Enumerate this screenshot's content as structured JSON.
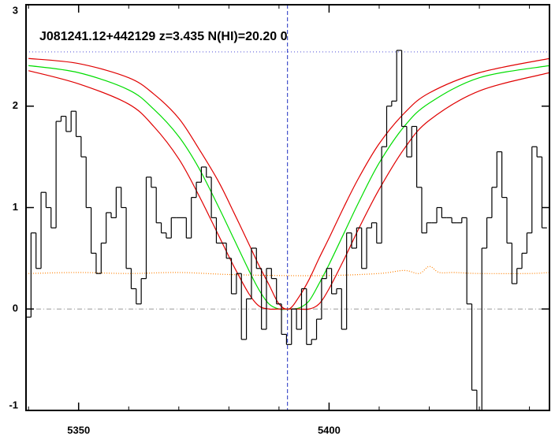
{
  "chart_data": {
    "type": "line",
    "annotation": "J081241.12+442129 z=3.435 N(HI)=20.20 0",
    "xlim": [
      5339.5,
      5444
    ],
    "ylim": [
      -1,
      3
    ],
    "xticks": [
      5350,
      5400
    ],
    "xminorticks": [
      5340,
      5360,
      5370,
      5380,
      5390,
      5410,
      5420,
      5430,
      5440
    ],
    "yticks": [
      -1,
      0,
      1,
      2,
      3
    ],
    "flux": {
      "color": "#000000",
      "step": true,
      "x": [
        5340,
        5341,
        5342,
        5343,
        5344,
        5345,
        5346,
        5347,
        5348,
        5349,
        5350,
        5351,
        5352,
        5353,
        5354,
        5355,
        5356,
        5357,
        5358,
        5359,
        5360,
        5361,
        5362,
        5363,
        5364,
        5365,
        5366,
        5367,
        5368,
        5369,
        5370,
        5371,
        5372,
        5373,
        5374,
        5375,
        5376,
        5377,
        5378,
        5379,
        5380,
        5381,
        5382,
        5383,
        5384,
        5385,
        5386,
        5387,
        5388,
        5389,
        5390,
        5391,
        5392,
        5393,
        5394,
        5395,
        5396,
        5397,
        5398,
        5399,
        5400,
        5401,
        5402,
        5403,
        5404,
        5405,
        5406,
        5407,
        5408,
        5409,
        5410,
        5411,
        5412,
        5413,
        5414,
        5415,
        5416,
        5417,
        5418,
        5419,
        5420,
        5421,
        5422,
        5423,
        5424,
        5425,
        5426,
        5427,
        5428,
        5429,
        5430,
        5431,
        5432,
        5433,
        5434,
        5435,
        5436,
        5437,
        5438,
        5439,
        5440,
        5441,
        5442,
        5443
      ],
      "values": [
        -0.08,
        0.75,
        0.4,
        1.15,
        1.0,
        0.8,
        1.85,
        1.9,
        1.75,
        1.95,
        1.7,
        1.5,
        1.0,
        0.55,
        0.35,
        0.65,
        0.95,
        0.9,
        1.2,
        1.0,
        0.4,
        0.2,
        0.05,
        0.3,
        1.3,
        1.2,
        0.85,
        0.75,
        0.7,
        0.9,
        0.9,
        0.9,
        0.7,
        1.1,
        1.25,
        1.4,
        1.3,
        0.9,
        0.65,
        0.65,
        0.5,
        0.15,
        0.35,
        -0.3,
        0.1,
        0.6,
        0.4,
        -0.2,
        0.4,
        0.3,
        0.05,
        -0.25,
        -0.35,
        0.0,
        -0.2,
        0.2,
        -0.35,
        -0.3,
        -0.1,
        0.3,
        0.4,
        0.15,
        0.2,
        -0.2,
        0.75,
        0.6,
        0.8,
        0.4,
        0.8,
        0.85,
        0.65,
        1.6,
        2.0,
        2.05,
        2.55,
        1.8,
        1.5,
        1.8,
        1.2,
        0.75,
        0.85,
        0.85,
        1.0,
        0.9,
        0.9,
        0.85,
        0.85,
        0.9,
        0.05,
        -0.8,
        -1.2,
        0.6,
        0.9,
        1.2,
        1.55,
        1.1,
        0.65,
        0.25,
        0.4,
        0.55,
        0.75,
        1.6,
        1.5,
        0.8
      ]
    },
    "error": {
      "color": "#ff8000",
      "x": [
        5340,
        5350,
        5360,
        5370,
        5380,
        5390,
        5400,
        5410,
        5415,
        5418,
        5420,
        5422,
        5425,
        5430,
        5440,
        5444
      ],
      "values": [
        0.35,
        0.36,
        0.35,
        0.36,
        0.34,
        0.33,
        0.33,
        0.35,
        0.38,
        0.35,
        0.42,
        0.36,
        0.36,
        0.35,
        0.35,
        0.36
      ]
    },
    "model_x": [
      5340,
      5350,
      5360,
      5365,
      5370,
      5374,
      5378,
      5381,
      5384,
      5386,
      5388,
      5390,
      5392,
      5394,
      5396,
      5398,
      5400,
      5403,
      5406,
      5410,
      5415,
      5420,
      5430,
      5444
    ],
    "models": [
      {
        "color": "#e00000",
        "values": [
          2.47,
          2.42,
          2.28,
          2.12,
          1.88,
          1.58,
          1.25,
          0.95,
          0.64,
          0.43,
          0.24,
          0.05,
          0.0,
          0.12,
          0.29,
          0.5,
          0.7,
          1.01,
          1.3,
          1.63,
          1.93,
          2.13,
          2.33,
          2.47
        ]
      },
      {
        "color": "#00dd00",
        "values": [
          2.4,
          2.33,
          2.16,
          1.97,
          1.7,
          1.39,
          1.0,
          0.69,
          0.38,
          0.19,
          0.05,
          0.0,
          0.0,
          0.01,
          0.08,
          0.25,
          0.44,
          0.75,
          1.06,
          1.44,
          1.8,
          2.03,
          2.28,
          2.4
        ]
      },
      {
        "color": "#e00000",
        "values": [
          2.35,
          2.22,
          2.02,
          1.8,
          1.48,
          1.12,
          0.72,
          0.42,
          0.15,
          0.03,
          0.0,
          0.0,
          0.0,
          0.0,
          0.0,
          0.05,
          0.2,
          0.49,
          0.8,
          1.18,
          1.58,
          1.86,
          2.15,
          2.33
        ]
      }
    ],
    "continuum_level": 2.535,
    "continuum_color": "#7070e0",
    "zero_line": 0,
    "zero_color": "#999999",
    "center": 5391.7,
    "center_color": "#2030c0"
  }
}
